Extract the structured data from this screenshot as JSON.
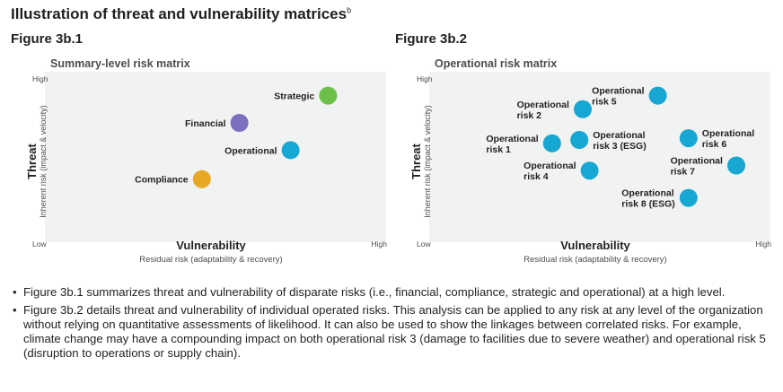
{
  "title": "Illustration of threat and vulnerability matrices",
  "title_superscript": "b",
  "colors": {
    "plot_bg": "#f1f2f2",
    "green": "#6cc04a",
    "purple": "#7b6fbf",
    "teal": "#17a7d3",
    "orange": "#e7a825",
    "text": "#231f20",
    "subtext": "#4d4d4f"
  },
  "chart_data": [
    {
      "figure_label": "Figure 3b.1",
      "type": "scatter",
      "title": "Summary-level risk matrix",
      "xlabel": "Vulnerability",
      "xsublabel": "Residual risk (adaptability & recovery)",
      "ylabel": "Threat",
      "ysublabel": "Inherent risk (impact & velocity)",
      "x_low": "Low",
      "x_high": "High",
      "y_high": "High",
      "xlim": [
        0,
        10
      ],
      "ylim": [
        0,
        10
      ],
      "points": [
        {
          "label": "Strategic",
          "x": 8.3,
          "y": 8.6,
          "color": "#6cc04a",
          "label_pos": "left"
        },
        {
          "label": "Financial",
          "x": 5.7,
          "y": 7.0,
          "color": "#7b6fbf",
          "label_pos": "left"
        },
        {
          "label": "Operational",
          "x": 7.2,
          "y": 5.4,
          "color": "#17a7d3",
          "label_pos": "left"
        },
        {
          "label": "Compliance",
          "x": 4.6,
          "y": 3.7,
          "color": "#e7a825",
          "label_pos": "left"
        }
      ]
    },
    {
      "figure_label": "Figure 3b.2",
      "type": "scatter",
      "title": "Operational risk matrix",
      "xlabel": "Vulnerability",
      "xsublabel": "Residual risk (adaptability & recovery)",
      "ylabel": "Threat",
      "ysublabel": "Inherent risk (impact & velocity)",
      "x_low": "Low",
      "x_high": "High",
      "y_high": "High",
      "xlim": [
        0,
        10
      ],
      "ylim": [
        0,
        10
      ],
      "points": [
        {
          "label": "Operational risk 1",
          "lines": [
            "Operational",
            "risk 1"
          ],
          "x": 3.6,
          "y": 5.8,
          "color": "#17a7d3",
          "label_pos": "left"
        },
        {
          "label": "Operational risk 2",
          "lines": [
            "Operational",
            "risk 2"
          ],
          "x": 4.5,
          "y": 7.8,
          "color": "#17a7d3",
          "label_pos": "left"
        },
        {
          "label": "Operational risk 3 (ESG)",
          "lines": [
            "Operational",
            "risk 3 (ESG)"
          ],
          "x": 4.4,
          "y": 6.0,
          "color": "#17a7d3",
          "label_pos": "right"
        },
        {
          "label": "Operational risk 4",
          "lines": [
            "Operational",
            "risk 4"
          ],
          "x": 4.7,
          "y": 4.2,
          "color": "#17a7d3",
          "label_pos": "left"
        },
        {
          "label": "Operational risk 5",
          "lines": [
            "Operational",
            "risk 5"
          ],
          "x": 6.7,
          "y": 8.6,
          "color": "#17a7d3",
          "label_pos": "left"
        },
        {
          "label": "Operational risk 6",
          "lines": [
            "Operational",
            "risk 6"
          ],
          "x": 7.6,
          "y": 6.1,
          "color": "#17a7d3",
          "label_pos": "right"
        },
        {
          "label": "Operational risk 7",
          "lines": [
            "Operational",
            "risk 7"
          ],
          "x": 9.0,
          "y": 4.5,
          "color": "#17a7d3",
          "label_pos": "left"
        },
        {
          "label": "Operational risk 8 (ESG)",
          "lines": [
            "Operational",
            "risk 8 (ESG)"
          ],
          "x": 7.6,
          "y": 2.6,
          "color": "#17a7d3",
          "label_pos": "left"
        }
      ]
    }
  ],
  "bullets": [
    "Figure 3b.1 summarizes threat and vulnerability of disparate risks (i.e., financial, compliance, strategic and operational) at a high level.",
    "Figure 3b.2 details threat and vulnerability of individual operated risks. This analysis can be applied to any risk at any level of the organization without relying on quantitative assessments of likelihood. It can also be used to show the linkages between correlated risks. For example, climate change may have a compounding impact on both operational risk 3 (damage to facilities due to severe weather) and operational risk 5 (disruption to operations or supply chain)."
  ],
  "bullet_char": "•"
}
